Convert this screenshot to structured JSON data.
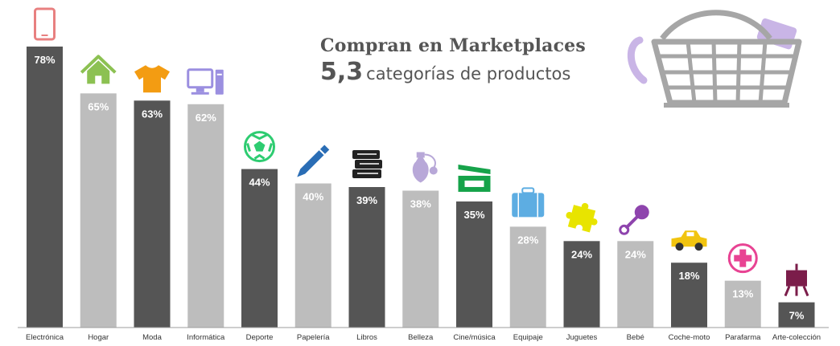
{
  "header": {
    "title": "Compran en Marketplaces",
    "subtitle_value": "5,3",
    "subtitle_text": "categorías de productos"
  },
  "chart_data": {
    "type": "bar",
    "title": "Compran en Marketplaces",
    "subtitle": "5,3 categorías de productos",
    "categories": [
      "Electrónica",
      "Hogar",
      "Moda",
      "Informática",
      "Deporte",
      "Papelería",
      "Libros",
      "Belleza",
      "Cine/música",
      "Equipaje",
      "Juguetes",
      "Bebé",
      "Coche-moto",
      "Parafarma",
      "Arte-colección"
    ],
    "values": [
      78,
      65,
      63,
      62,
      44,
      40,
      39,
      38,
      35,
      28,
      24,
      24,
      18,
      13,
      7
    ],
    "value_labels": [
      "78%",
      "65%",
      "63%",
      "62%",
      "44%",
      "40%",
      "39%",
      "38%",
      "35%",
      "28%",
      "24%",
      "24%",
      "18%",
      "13%",
      "7%"
    ],
    "ylim": [
      0,
      100
    ],
    "grid": false,
    "legend": "none",
    "colors": {
      "dark_bar": "#555555",
      "light_bar": "#bdbdbd",
      "baseline": "#9e9e9e",
      "basket": "#a6a6a6",
      "basket_accent": "#c9b5e6"
    },
    "icons": [
      "phone-icon",
      "house-icon",
      "tshirt-icon",
      "computer-icon",
      "soccer-ball-icon",
      "pen-icon",
      "books-icon",
      "perfume-icon",
      "clapperboard-icon",
      "suitcase-icon",
      "puzzle-icon",
      "rattle-icon",
      "car-icon",
      "pharmacy-cross-icon",
      "easel-icon"
    ],
    "icon_colors": [
      "#e88080",
      "#8cc152",
      "#f39c12",
      "#9b8fe0",
      "#2ecc71",
      "#2a6db5",
      "#222222",
      "#b8a8d8",
      "#16a34a",
      "#5dade2",
      "#e8e400",
      "#8e44ad",
      "#f1c40f",
      "#e84393",
      "#7b1d4a"
    ]
  }
}
